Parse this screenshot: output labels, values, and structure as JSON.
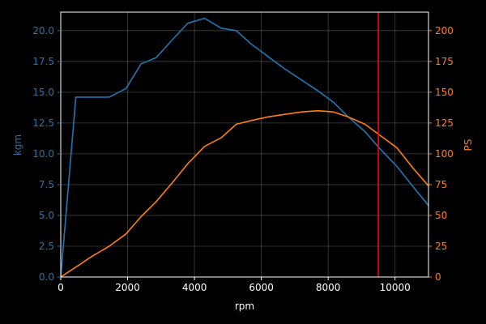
{
  "chart_data": {
    "type": "line",
    "title": "",
    "xlabel": "rpm",
    "xlim": [
      0,
      11000
    ],
    "xticks": [
      0,
      2000,
      4000,
      6000,
      8000,
      10000
    ],
    "grid": true,
    "background": "#000000",
    "axes": {
      "left": {
        "label": "kgm",
        "color": "#1f77b4",
        "ylim": [
          0,
          21.5
        ],
        "ticks": [
          "0.0",
          "2.5",
          "5.0",
          "7.5",
          "10.0",
          "12.5",
          "15.0",
          "17.5",
          "20.0"
        ]
      },
      "right": {
        "label": "PS",
        "color": "#ff7f0e",
        "ylim": [
          0,
          215
        ],
        "ticks": [
          "0",
          "25",
          "50",
          "75",
          "100",
          "125",
          "150",
          "175",
          "200"
        ]
      }
    },
    "series": [
      {
        "axis": "left",
        "color": "#1f77b4",
        "x": [
          0,
          450,
          950,
          1450,
          1950,
          2400,
          2850,
          3350,
          3800,
          4300,
          4800,
          5250,
          5700,
          6200,
          6700,
          7200,
          7700,
          8150,
          8600,
          9100,
          9550,
          10050,
          10550,
          11000
        ],
        "y": [
          0,
          14.6,
          14.6,
          14.6,
          15.3,
          17.3,
          17.8,
          19.3,
          20.6,
          21.0,
          20.2,
          20.0,
          18.9,
          17.9,
          16.9,
          16.0,
          15.1,
          14.2,
          13.0,
          11.8,
          10.4,
          9.0,
          7.3,
          5.8
        ]
      },
      {
        "axis": "right",
        "color": "#ff7f0e",
        "x": [
          0,
          450,
          950,
          1450,
          1950,
          2400,
          2850,
          3350,
          3800,
          4300,
          4800,
          5250,
          5700,
          6200,
          6700,
          7200,
          7700,
          8150,
          8600,
          9100,
          9550,
          10050,
          10550,
          11000
        ],
        "y": [
          0,
          8,
          17,
          25,
          35,
          49,
          61,
          77,
          92,
          106,
          113,
          124,
          127,
          130,
          132,
          134,
          135,
          134,
          130,
          124,
          115,
          105,
          88,
          74
        ]
      }
    ],
    "reference_line": {
      "x": 9500,
      "color": "#ff0000"
    }
  }
}
